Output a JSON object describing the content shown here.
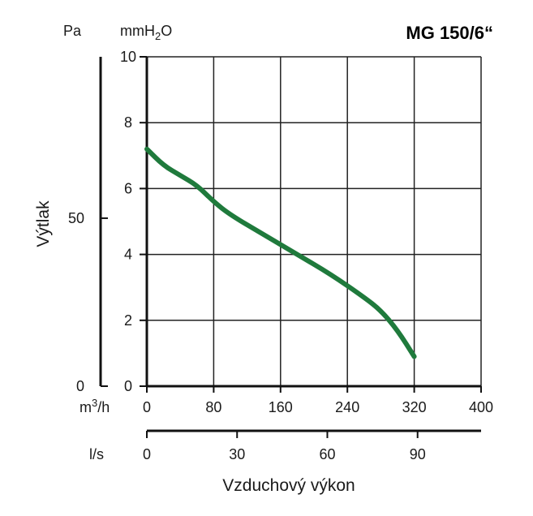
{
  "chart_data": {
    "type": "line",
    "title": "MG 150/6“",
    "xlabel": "Vzduchový výkon",
    "ylabel": "Výtlak",
    "x_unit_primary": "m3/h",
    "x_unit_secondary": "l/s",
    "y_unit_primary": "mmH2O",
    "y_unit_secondary": "Pa",
    "xlim": [
      0,
      400
    ],
    "ylim": [
      0,
      10
    ],
    "x_ticks": [
      0,
      80,
      160,
      240,
      320,
      400
    ],
    "y_ticks": [
      0,
      2,
      4,
      6,
      8,
      10
    ],
    "x2_ticks": [
      0,
      30,
      60,
      90
    ],
    "x2_tick_positions_m3h": [
      0,
      108,
      216,
      324
    ],
    "y2_ticks": [
      0,
      50
    ],
    "y2_tick_positions_mmh2o": [
      0,
      5.1
    ],
    "grid": true,
    "series": [
      {
        "color": "#1f7a3c",
        "x": [
          0,
          20,
          40,
          60,
          80,
          100,
          140,
          180,
          220,
          260,
          280,
          300,
          320
        ],
        "y": [
          7.2,
          6.7,
          6.4,
          6.1,
          5.6,
          5.2,
          4.6,
          4.0,
          3.4,
          2.7,
          2.3,
          1.7,
          0.9
        ]
      }
    ]
  },
  "labels": {
    "unit_pa": "Pa",
    "unit_mmh2o_prefix": "mmH",
    "unit_mmh2o_sub": "2",
    "unit_mmh2o_suffix": "O",
    "unit_m3h_prefix": "m",
    "unit_m3h_sup": "3",
    "unit_m3h_suffix": "/h",
    "unit_ls": "l/s"
  }
}
